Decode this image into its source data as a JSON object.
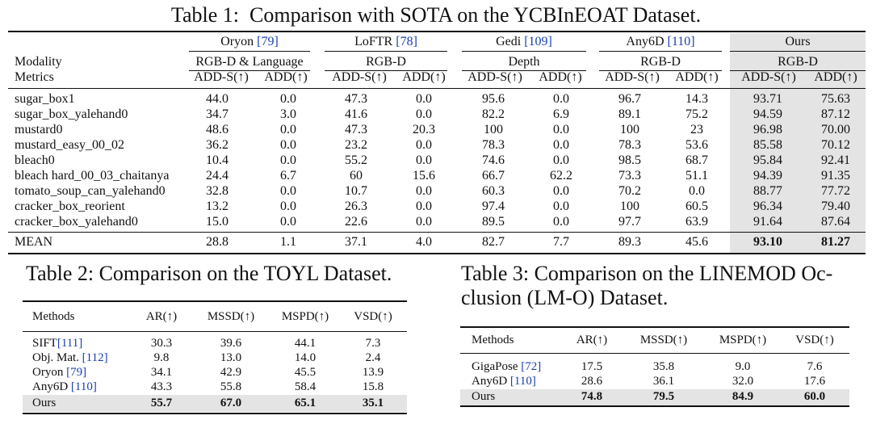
{
  "table1": {
    "caption": "Table 1:  Comparison with SOTA on the YCBInEOAT Dataset.",
    "row_labels": {
      "modality": "Modality",
      "metrics": "Metrics",
      "mean": "MEAN"
    },
    "methods": [
      {
        "name": "Oryon ",
        "cite": "[79]",
        "modality": "RGB-D & Language",
        "m1": "ADD-S(↑)",
        "m2": "ADD(↑)"
      },
      {
        "name": "LoFTR ",
        "cite": "[78]",
        "modality": "RGB-D",
        "m1": "ADD-S(↑)",
        "m2": "ADD(↑)"
      },
      {
        "name": "Gedi ",
        "cite": "[109]",
        "modality": "Depth",
        "m1": "ADD-S(↑)",
        "m2": "ADD(↑)"
      },
      {
        "name": "Any6D ",
        "cite": "[110]",
        "modality": "RGB-D",
        "m1": "ADD-S(↑)",
        "m2": "ADD(↑)"
      },
      {
        "name": "Ours",
        "cite": "",
        "modality": "RGB-D",
        "m1": "ADD-S(↑)",
        "m2": "ADD(↑)"
      }
    ],
    "rows": [
      {
        "label": "sugar_box1",
        "values": [
          "44.0",
          "0.0",
          "47.3",
          "0.0",
          "95.6",
          "0.0",
          "96.7",
          "14.3",
          "93.71",
          "75.63"
        ]
      },
      {
        "label": "sugar_box_yalehand0",
        "values": [
          "34.7",
          "3.0",
          "41.6",
          "0.0",
          "82.2",
          "6.9",
          "89.1",
          "75.2",
          "94.59",
          "87.12"
        ]
      },
      {
        "label": "mustard0",
        "values": [
          "48.6",
          "0.0",
          "47.3",
          "20.3",
          "100",
          "0.0",
          "100",
          "23",
          "96.98",
          "70.00"
        ]
      },
      {
        "label": "mustard_easy_00_02",
        "values": [
          "36.2",
          "0.0",
          "23.2",
          "0.0",
          "78.3",
          "0.0",
          "78.3",
          "53.6",
          "85.58",
          "70.12"
        ]
      },
      {
        "label": "bleach0",
        "values": [
          "10.4",
          "0.0",
          "55.2",
          "0.0",
          "74.6",
          "0.0",
          "98.5",
          "68.7",
          "95.84",
          "92.41"
        ]
      },
      {
        "label": "bleach hard_00_03_chaitanya",
        "values": [
          "24.4",
          "6.7",
          "60",
          "15.6",
          "66.7",
          "62.2",
          "73.3",
          "51.1",
          "94.39",
          "91.35"
        ]
      },
      {
        "label": "tomato_soup_can_yalehand0",
        "values": [
          "32.8",
          "0.0",
          "10.7",
          "0.0",
          "60.3",
          "0.0",
          "70.2",
          "0.0",
          "88.77",
          "77.72"
        ]
      },
      {
        "label": "cracker_box_reorient",
        "values": [
          "13.2",
          "0.0",
          "26.3",
          "0.0",
          "97.4",
          "0.0",
          "100",
          "60.5",
          "96.34",
          "79.40"
        ]
      },
      {
        "label": "cracker_box_yalehand0",
        "values": [
          "15.0",
          "0.0",
          "22.6",
          "0.0",
          "89.5",
          "0.0",
          "97.7",
          "63.9",
          "91.64",
          "87.64"
        ]
      }
    ],
    "mean": [
      "28.8",
      "1.1",
      "37.1",
      "4.0",
      "82.7",
      "7.7",
      "89.3",
      "45.6",
      "93.10",
      "81.27"
    ]
  },
  "table2": {
    "caption": "Table 2: Comparison on the TOYL Dataset.",
    "headers": [
      "Methods",
      "AR(↑)",
      "MSSD(↑)",
      "MSPD(↑)",
      "VSD(↑)"
    ],
    "rows": [
      {
        "method": "SIFT",
        "cite": "[111]",
        "values": [
          "30.3",
          "39.6",
          "44.1",
          "7.3"
        ]
      },
      {
        "method": "Obj. Mat. ",
        "cite": "[112]",
        "values": [
          "9.8",
          "13.0",
          "14.0",
          "2.4"
        ]
      },
      {
        "method": "Oryon ",
        "cite": "[79]",
        "values": [
          "34.1",
          "42.9",
          "45.5",
          "13.9"
        ]
      },
      {
        "method": "Any6D ",
        "cite": "[110]",
        "values": [
          "43.3",
          "55.8",
          "58.4",
          "15.8"
        ]
      },
      {
        "method": "Ours",
        "cite": "",
        "values": [
          "55.7",
          "67.0",
          "65.1",
          "35.1"
        ]
      }
    ]
  },
  "table3": {
    "caption_line1": "Table 3: Comparison on the LINEMOD Oc-",
    "caption_line2": "clusion (LM-O) Dataset.",
    "headers": [
      "Methods",
      "AR(↑)",
      "MSSD(↑)",
      "MSPD(↑)",
      "VSD(↑)"
    ],
    "rows": [
      {
        "method": "GigaPose ",
        "cite": "[72]",
        "values": [
          "17.5",
          "35.8",
          "9.0",
          "7.6"
        ]
      },
      {
        "method": "Any6D ",
        "cite": "[110]",
        "values": [
          "28.6",
          "36.1",
          "32.0",
          "17.6"
        ]
      },
      {
        "method": "Ours",
        "cite": "",
        "values": [
          "74.8",
          "79.5",
          "84.9",
          "60.0"
        ]
      }
    ]
  }
}
